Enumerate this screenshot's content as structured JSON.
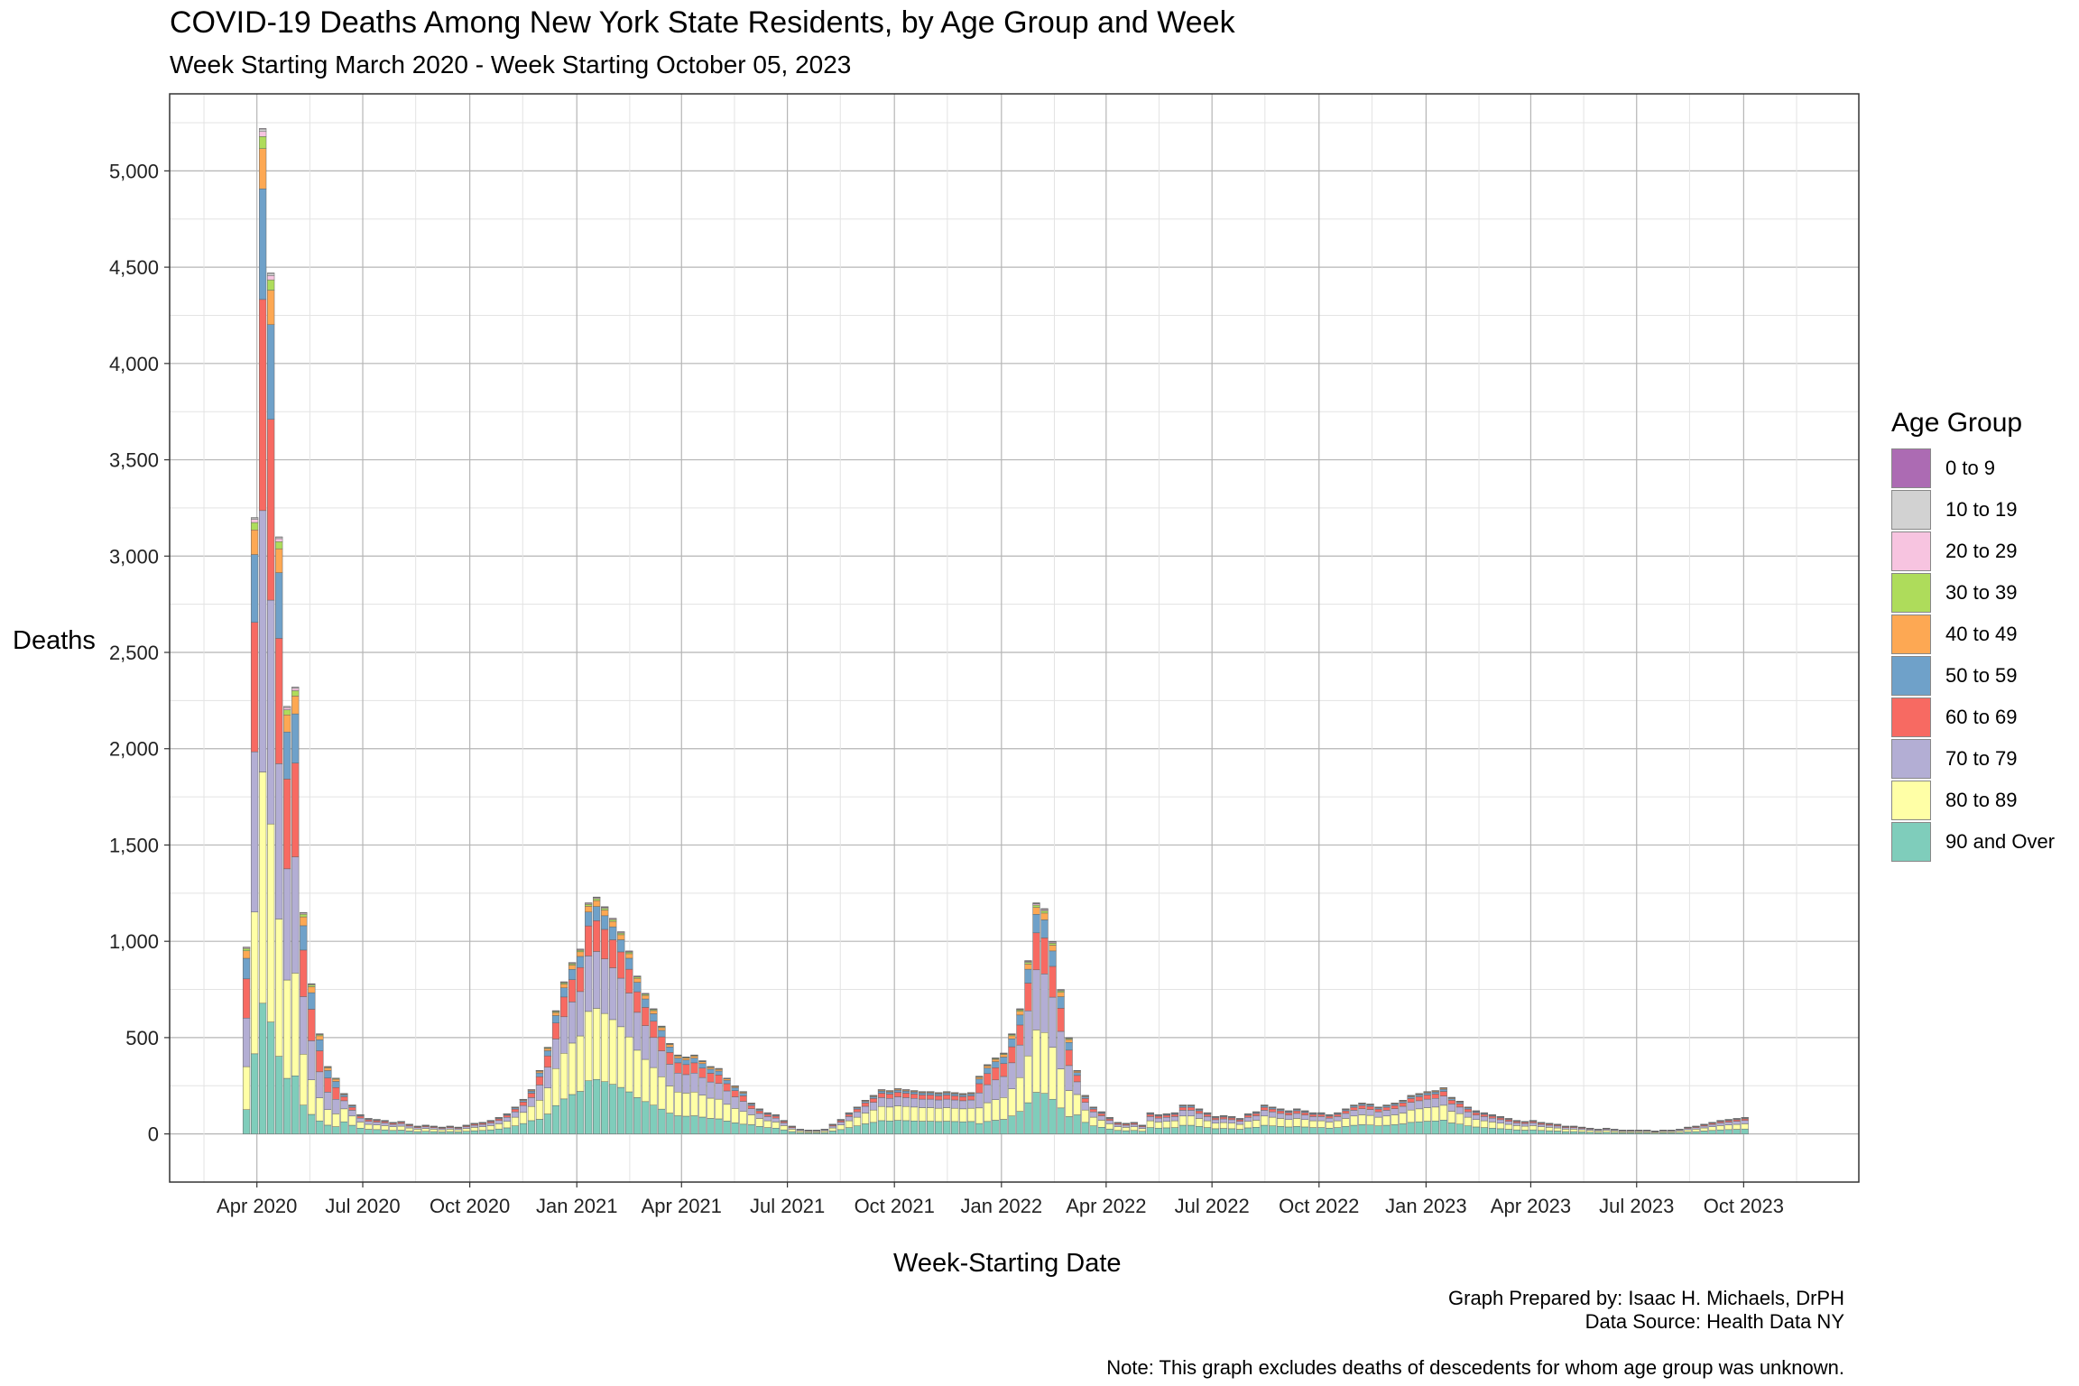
{
  "chart_data": {
    "type": "bar",
    "stacked": true,
    "title": "COVID-19 Deaths Among New York State Residents, by Age Group and Week",
    "subtitle": "Week Starting March 2020 - Week Starting October 05, 2023",
    "xlabel": "Week-Starting Date",
    "ylabel": "Deaths",
    "ylim": [
      -250,
      5400
    ],
    "xlim": [
      "2020-01-17",
      "2024-01-08"
    ],
    "y_ticks": [
      0,
      500,
      1000,
      1500,
      2000,
      2500,
      3000,
      3500,
      4000,
      4500,
      5000
    ],
    "y_tick_labels": [
      "0",
      "500",
      "1,000",
      "1,500",
      "2,000",
      "2,500",
      "3,000",
      "3,500",
      "4,000",
      "4,500",
      "5,000"
    ],
    "x_ticks": [
      "2020-04-01",
      "2020-07-01",
      "2020-10-01",
      "2021-01-01",
      "2021-04-01",
      "2021-07-01",
      "2021-10-01",
      "2022-01-01",
      "2022-04-01",
      "2022-07-01",
      "2022-10-01",
      "2023-01-01",
      "2023-04-01",
      "2023-07-01",
      "2023-10-01"
    ],
    "x_tick_labels": [
      "Apr 2020",
      "Jul 2020",
      "Oct 2020",
      "Jan 2021",
      "Apr 2021",
      "Jul 2021",
      "Oct 2021",
      "Jan 2022",
      "Apr 2022",
      "Jul 2022",
      "Oct 2022",
      "Jan 2023",
      "Apr 2023",
      "Jul 2023",
      "Oct 2023"
    ],
    "grid": true,
    "legend_position": "right",
    "legend_title": "Age Group",
    "series": [
      {
        "name": "90 and Over",
        "color": "#7FCDBB"
      },
      {
        "name": "80 to 89",
        "color": "#FFFFA6"
      },
      {
        "name": "70 to 79",
        "color": "#B3AED4"
      },
      {
        "name": "60 to 69",
        "color": "#F76A62"
      },
      {
        "name": "50 to 59",
        "color": "#6FA1C9"
      },
      {
        "name": "40 to 49",
        "color": "#FDA853"
      },
      {
        "name": "30 to 39",
        "color": "#AEDC5B"
      },
      {
        "name": "20 to 29",
        "color": "#F7C4E0"
      },
      {
        "name": "10 to 19",
        "color": "#D2D2D2"
      },
      {
        "name": "0 to 9",
        "color": "#AC6BB3"
      }
    ],
    "legend_order": [
      "0 to 9",
      "10 to 19",
      "20 to 29",
      "30 to 39",
      "40 to 49",
      "50 to 59",
      "60 to 69",
      "70 to 79",
      "80 to 89",
      "90 and Over"
    ],
    "x": [
      "2020-03-23",
      "2020-03-30",
      "2020-04-06",
      "2020-04-13",
      "2020-04-20",
      "2020-04-27",
      "2020-05-04",
      "2020-05-11",
      "2020-05-18",
      "2020-05-25",
      "2020-06-01",
      "2020-06-08",
      "2020-06-15",
      "2020-06-22",
      "2020-06-29",
      "2020-07-06",
      "2020-07-13",
      "2020-07-20",
      "2020-07-27",
      "2020-08-03",
      "2020-08-10",
      "2020-08-17",
      "2020-08-24",
      "2020-08-31",
      "2020-09-07",
      "2020-09-14",
      "2020-09-21",
      "2020-09-28",
      "2020-10-05",
      "2020-10-12",
      "2020-10-19",
      "2020-10-26",
      "2020-11-02",
      "2020-11-09",
      "2020-11-16",
      "2020-11-23",
      "2020-11-30",
      "2020-12-07",
      "2020-12-14",
      "2020-12-21",
      "2020-12-28",
      "2021-01-04",
      "2021-01-11",
      "2021-01-18",
      "2021-01-25",
      "2021-02-01",
      "2021-02-08",
      "2021-02-15",
      "2021-02-22",
      "2021-03-01",
      "2021-03-08",
      "2021-03-15",
      "2021-03-22",
      "2021-03-29",
      "2021-04-05",
      "2021-04-12",
      "2021-04-19",
      "2021-04-26",
      "2021-05-03",
      "2021-05-10",
      "2021-05-17",
      "2021-05-24",
      "2021-05-31",
      "2021-06-07",
      "2021-06-14",
      "2021-06-21",
      "2021-06-28",
      "2021-07-05",
      "2021-07-12",
      "2021-07-19",
      "2021-07-26",
      "2021-08-02",
      "2021-08-09",
      "2021-08-16",
      "2021-08-23",
      "2021-08-30",
      "2021-09-06",
      "2021-09-13",
      "2021-09-20",
      "2021-09-27",
      "2021-10-04",
      "2021-10-11",
      "2021-10-18",
      "2021-10-25",
      "2021-11-01",
      "2021-11-08",
      "2021-11-15",
      "2021-11-22",
      "2021-11-29",
      "2021-12-06",
      "2021-12-13",
      "2021-12-20",
      "2021-12-27",
      "2022-01-03",
      "2022-01-10",
      "2022-01-17",
      "2022-01-24",
      "2022-01-31",
      "2022-02-07",
      "2022-02-14",
      "2022-02-21",
      "2022-02-28",
      "2022-03-07",
      "2022-03-14",
      "2022-03-21",
      "2022-03-28",
      "2022-04-04",
      "2022-04-11",
      "2022-04-18",
      "2022-04-25",
      "2022-05-02",
      "2022-05-09",
      "2022-05-16",
      "2022-05-23",
      "2022-05-30",
      "2022-06-06",
      "2022-06-13",
      "2022-06-20",
      "2022-06-27",
      "2022-07-04",
      "2022-07-11",
      "2022-07-18",
      "2022-07-25",
      "2022-08-01",
      "2022-08-08",
      "2022-08-15",
      "2022-08-22",
      "2022-08-29",
      "2022-09-05",
      "2022-09-12",
      "2022-09-19",
      "2022-09-26",
      "2022-10-03",
      "2022-10-10",
      "2022-10-17",
      "2022-10-24",
      "2022-10-31",
      "2022-11-07",
      "2022-11-14",
      "2022-11-21",
      "2022-11-28",
      "2022-12-05",
      "2022-12-12",
      "2022-12-19",
      "2022-12-26",
      "2023-01-02",
      "2023-01-09",
      "2023-01-16",
      "2023-01-23",
      "2023-01-30",
      "2023-02-06",
      "2023-02-13",
      "2023-02-20",
      "2023-02-27",
      "2023-03-06",
      "2023-03-13",
      "2023-03-20",
      "2023-03-27",
      "2023-04-03",
      "2023-04-10",
      "2023-04-17",
      "2023-04-24",
      "2023-05-01",
      "2023-05-08",
      "2023-05-15",
      "2023-05-22",
      "2023-05-29",
      "2023-06-05",
      "2023-06-12",
      "2023-06-19",
      "2023-06-26",
      "2023-07-03",
      "2023-07-10",
      "2023-07-17",
      "2023-07-24",
      "2023-07-31",
      "2023-08-07",
      "2023-08-14",
      "2023-08-21",
      "2023-08-28",
      "2023-09-04",
      "2023-09-11",
      "2023-09-18",
      "2023-09-25",
      "2023-10-02"
    ],
    "totals": [
      970,
      3200,
      5220,
      4470,
      3100,
      2220,
      2320,
      1150,
      780,
      520,
      350,
      290,
      210,
      150,
      100,
      80,
      75,
      70,
      60,
      65,
      50,
      40,
      45,
      40,
      35,
      40,
      35,
      45,
      55,
      60,
      70,
      85,
      105,
      140,
      180,
      230,
      330,
      450,
      640,
      790,
      890,
      960,
      1200,
      1230,
      1180,
      1120,
      1050,
      950,
      820,
      730,
      650,
      560,
      470,
      410,
      400,
      410,
      380,
      350,
      340,
      290,
      250,
      220,
      160,
      130,
      110,
      100,
      70,
      40,
      25,
      20,
      20,
      25,
      50,
      75,
      110,
      140,
      175,
      200,
      230,
      225,
      235,
      230,
      225,
      220,
      220,
      215,
      220,
      215,
      210,
      215,
      300,
      360,
      395,
      420,
      520,
      650,
      900,
      1200,
      1170,
      1000,
      750,
      500,
      330,
      200,
      140,
      115,
      85,
      60,
      55,
      60,
      45,
      110,
      100,
      105,
      110,
      150,
      150,
      130,
      110,
      90,
      95,
      90,
      80,
      105,
      115,
      150,
      140,
      130,
      120,
      130,
      120,
      110,
      110,
      100,
      110,
      130,
      150,
      160,
      155,
      140,
      150,
      160,
      175,
      200,
      210,
      220,
      225,
      240,
      190,
      170,
      140,
      120,
      110,
      100,
      90,
      80,
      70,
      65,
      70,
      60,
      55,
      50,
      40,
      40,
      35,
      30,
      25,
      30,
      25,
      20,
      20,
      20,
      20,
      15,
      20,
      20,
      25,
      35,
      40,
      50,
      60,
      70,
      75,
      80,
      85
    ],
    "age_mix_notes": "Each bar is split among the age groups, 90 and Over at the bottom through 0 to 9 at the top."
  },
  "credits": {
    "prepared": "Graph Prepared by: Isaac H. Michaels, DrPH",
    "source": "Data Source: Health Data NY",
    "note": "Note: This graph excludes deaths of descedents for whom age group was unknown."
  }
}
